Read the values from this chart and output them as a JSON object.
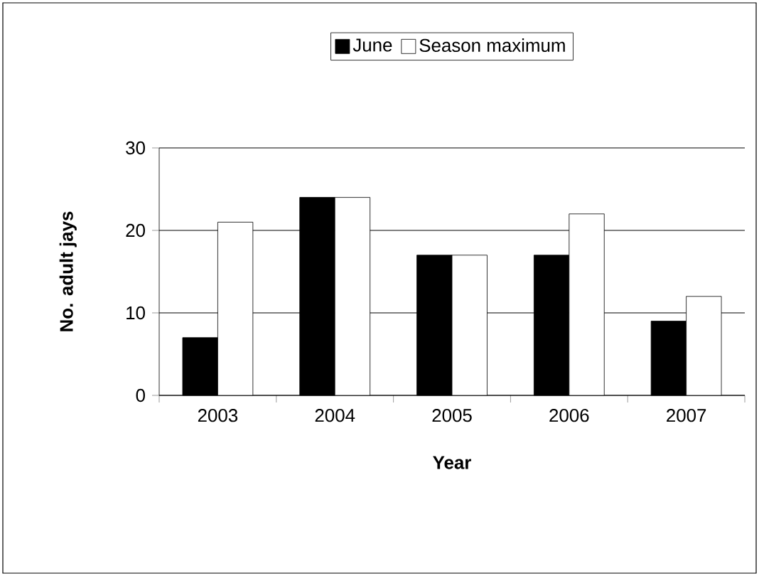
{
  "chart_data": {
    "type": "bar",
    "xlabel": "Year",
    "ylabel": "No. adult jays",
    "categories": [
      "2003",
      "2004",
      "2005",
      "2006",
      "2007"
    ],
    "series": [
      {
        "name": "June",
        "color": "#000000",
        "values": [
          7,
          24,
          17,
          17,
          9
        ]
      },
      {
        "name": "Season maximum",
        "color": "#ffffff",
        "values": [
          21,
          24,
          17,
          22,
          12
        ]
      }
    ],
    "ylim": [
      0,
      30
    ],
    "yticks": [
      0,
      10,
      20,
      30
    ],
    "grid": "y",
    "legend": "top"
  }
}
